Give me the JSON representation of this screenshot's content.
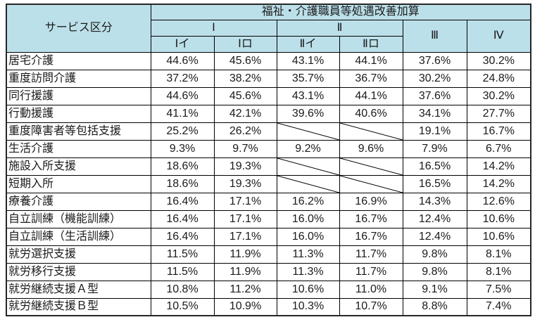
{
  "colors": {
    "header_bg": "#BCE0EA",
    "border": "#000000",
    "outer_border": "#262626",
    "text": "#1A1A1A"
  },
  "table": {
    "header": {
      "service_col": "サービス区分",
      "group_title": "福祉・介護職員等処遇改善加算",
      "level_1": "Ⅰ",
      "level_2": "Ⅱ",
      "level_3": "Ⅲ",
      "level_4": "Ⅳ",
      "sub_headers": [
        "Ⅰイ",
        "Ⅰロ",
        "Ⅱイ",
        "Ⅱロ"
      ]
    },
    "rows": [
      {
        "label": "居宅介護",
        "values": [
          "44.6%",
          "45.6%",
          "43.1%",
          "44.1%",
          "37.6%",
          "30.2%"
        ]
      },
      {
        "label": "重度訪問介護",
        "values": [
          "37.2%",
          "38.2%",
          "35.7%",
          "36.7%",
          "30.2%",
          "24.8%"
        ]
      },
      {
        "label": "同行援護",
        "values": [
          "44.6%",
          "45.6%",
          "43.1%",
          "44.1%",
          "37.6%",
          "30.2%"
        ]
      },
      {
        "label": "行動援護",
        "values": [
          "41.1%",
          "42.1%",
          "39.6%",
          "40.6%",
          "34.1%",
          "27.7%"
        ]
      },
      {
        "label": "重度障害者等包括支援",
        "values": [
          "25.2%",
          "26.2%",
          null,
          null,
          "19.1%",
          "16.7%"
        ]
      },
      {
        "label": "生活介護",
        "values": [
          "9.3%",
          "9.7%",
          "9.2%",
          "9.6%",
          "7.9%",
          "6.7%"
        ]
      },
      {
        "label": "施設入所支援",
        "values": [
          "18.6%",
          "19.3%",
          null,
          null,
          "16.5%",
          "14.2%"
        ]
      },
      {
        "label": "短期入所",
        "values": [
          "18.6%",
          "19.3%",
          null,
          null,
          "16.5%",
          "14.2%"
        ]
      },
      {
        "label": "療養介護",
        "values": [
          "16.4%",
          "17.1%",
          "16.2%",
          "16.9%",
          "14.3%",
          "12.6%"
        ]
      },
      {
        "label": "自立訓練（機能訓練）",
        "values": [
          "16.4%",
          "17.1%",
          "16.0%",
          "16.7%",
          "12.4%",
          "10.6%"
        ]
      },
      {
        "label": "自立訓練（生活訓練）",
        "values": [
          "16.4%",
          "17.1%",
          "16.0%",
          "16.7%",
          "12.4%",
          "10.6%"
        ]
      },
      {
        "label": "就労選択支援",
        "values": [
          "11.5%",
          "11.9%",
          "11.3%",
          "11.7%",
          "9.8%",
          "8.1%"
        ]
      },
      {
        "label": "就労移行支援",
        "values": [
          "11.5%",
          "11.9%",
          "11.3%",
          "11.7%",
          "9.8%",
          "8.1%"
        ]
      },
      {
        "label": "就労継続支援Ａ型",
        "values": [
          "10.8%",
          "11.2%",
          "10.6%",
          "11.0%",
          "9.1%",
          "7.5%"
        ]
      },
      {
        "label": "就労継続支援Ｂ型",
        "values": [
          "10.5%",
          "10.9%",
          "10.3%",
          "10.7%",
          "8.8%",
          "7.4%"
        ]
      }
    ]
  }
}
